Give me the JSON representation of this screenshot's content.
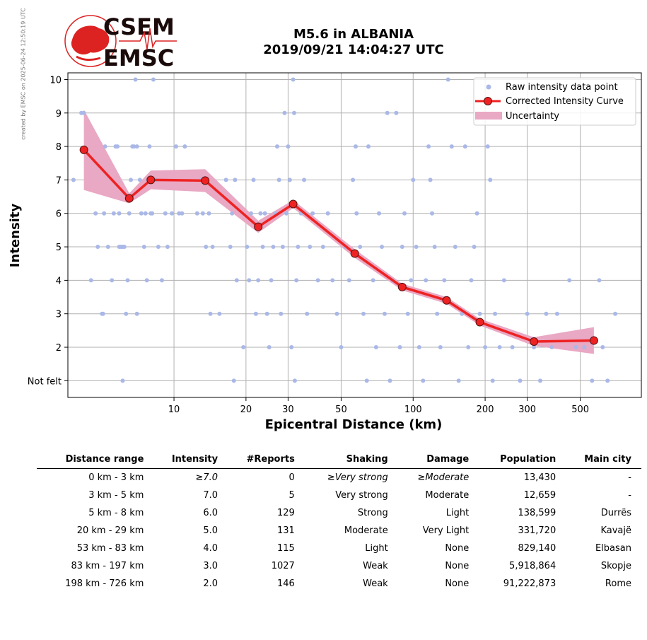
{
  "credit": "created by EMSC on 2025-06-24 12:50:19 UTC",
  "logo": {
    "line1": "CSEM",
    "line2": "EMSC"
  },
  "title": {
    "line1": "M5.6 in ALBANIA",
    "line2": "2019/09/21 14:04:27 UTC"
  },
  "colors": {
    "raw": "#aab8e8",
    "curve": "#ee2222",
    "uncertainty": "#e9a8c4",
    "logo_red": "#dd2222"
  },
  "chart_data": {
    "type": "scatter",
    "xlabel": "Epicentral Distance (km)",
    "ylabel": "Intensity",
    "xscale": "log",
    "xlim": [
      3.6,
      900
    ],
    "ylim": [
      0.5,
      10.2
    ],
    "xticks": [
      10,
      20,
      30,
      50,
      100,
      200,
      300,
      500
    ],
    "yticks": [
      1,
      2,
      3,
      4,
      5,
      6,
      7,
      8,
      9,
      10
    ],
    "ytick_labels": [
      "Not felt",
      "2",
      "3",
      "4",
      "5",
      "6",
      "7",
      "8",
      "9",
      "10"
    ],
    "grid": true,
    "legend": {
      "position": "top-right",
      "entries": [
        "Raw intensity data point",
        "Corrected Intensity Curve",
        "Uncertainty"
      ]
    },
    "corrected_curve": {
      "name": "Corrected Intensity Curve",
      "x": [
        4.2,
        6.5,
        8.0,
        13.5,
        22.5,
        31.5,
        57,
        90,
        138,
        190,
        320,
        570
      ],
      "y": [
        7.9,
        6.45,
        7.0,
        6.98,
        5.6,
        6.28,
        4.8,
        3.8,
        3.4,
        2.75,
        2.17,
        2.2
      ]
    },
    "uncertainty": {
      "name": "Uncertainty",
      "x": [
        4.2,
        6.5,
        8.0,
        13.5,
        22.5,
        31.5,
        57,
        90,
        138,
        190,
        320,
        570
      ],
      "upper": [
        9.1,
        6.6,
        7.28,
        7.32,
        5.78,
        6.4,
        4.93,
        3.9,
        3.5,
        2.85,
        2.3,
        2.6
      ],
      "lower": [
        6.7,
        6.3,
        6.72,
        6.64,
        5.42,
        6.16,
        4.67,
        3.7,
        3.3,
        2.65,
        2.04,
        1.8
      ]
    },
    "raw_points": [
      [
        3.8,
        7
      ],
      [
        4.1,
        9
      ],
      [
        4.2,
        9
      ],
      [
        4.5,
        4
      ],
      [
        4.7,
        6
      ],
      [
        4.8,
        5
      ],
      [
        5.0,
        3
      ],
      [
        5.05,
        3
      ],
      [
        5.1,
        6
      ],
      [
        5.15,
        8
      ],
      [
        5.3,
        5
      ],
      [
        5.5,
        4
      ],
      [
        5.6,
        6
      ],
      [
        5.7,
        8
      ],
      [
        5.8,
        8
      ],
      [
        5.9,
        6
      ],
      [
        5.9,
        5
      ],
      [
        6.0,
        5
      ],
      [
        6.1,
        5
      ],
      [
        6.2,
        5
      ],
      [
        6.3,
        3
      ],
      [
        6.1,
        1
      ],
      [
        6.4,
        4
      ],
      [
        6.5,
        6
      ],
      [
        6.6,
        7
      ],
      [
        6.7,
        8
      ],
      [
        6.8,
        8
      ],
      [
        6.9,
        10
      ],
      [
        7.0,
        8
      ],
      [
        7.0,
        3
      ],
      [
        7.2,
        7
      ],
      [
        7.3,
        6
      ],
      [
        7.5,
        5
      ],
      [
        7.6,
        6
      ],
      [
        7.7,
        4
      ],
      [
        7.8,
        7
      ],
      [
        7.9,
        8
      ],
      [
        8.0,
        6
      ],
      [
        8.1,
        6
      ],
      [
        8.2,
        10
      ],
      [
        8.4,
        7
      ],
      [
        8.6,
        5
      ],
      [
        8.9,
        4
      ],
      [
        9.2,
        6
      ],
      [
        9.4,
        5
      ],
      [
        9.8,
        6
      ],
      [
        10.2,
        8
      ],
      [
        10.5,
        6
      ],
      [
        10.8,
        6
      ],
      [
        11.1,
        8
      ],
      [
        12.5,
        6
      ],
      [
        13.0,
        7
      ],
      [
        13.2,
        6
      ],
      [
        13.6,
        5
      ],
      [
        14.0,
        6
      ],
      [
        14.2,
        3
      ],
      [
        14.5,
        5
      ],
      [
        15.5,
        3
      ],
      [
        16.5,
        7
      ],
      [
        17.2,
        5
      ],
      [
        17.5,
        6
      ],
      [
        17.8,
        1
      ],
      [
        18.0,
        7
      ],
      [
        18.3,
        4
      ],
      [
        19.5,
        2
      ],
      [
        20.2,
        5
      ],
      [
        20.6,
        4
      ],
      [
        21.0,
        6
      ],
      [
        21.5,
        7
      ],
      [
        22.0,
        3
      ],
      [
        22.5,
        4
      ],
      [
        23.0,
        6
      ],
      [
        23.5,
        5
      ],
      [
        24.0,
        6
      ],
      [
        24.5,
        3
      ],
      [
        25.0,
        2
      ],
      [
        25.5,
        4
      ],
      [
        26.0,
        5
      ],
      [
        26.5,
        6
      ],
      [
        27.0,
        8
      ],
      [
        27.5,
        7
      ],
      [
        28.0,
        3
      ],
      [
        28.5,
        5
      ],
      [
        29.0,
        9
      ],
      [
        29.5,
        6
      ],
      [
        30.0,
        8
      ],
      [
        30.5,
        7
      ],
      [
        31.0,
        2
      ],
      [
        31.5,
        10
      ],
      [
        31.8,
        9
      ],
      [
        32.0,
        1
      ],
      [
        32.5,
        4
      ],
      [
        33.0,
        5
      ],
      [
        34.0,
        6
      ],
      [
        35.0,
        7
      ],
      [
        36.0,
        3
      ],
      [
        37.0,
        5
      ],
      [
        38.0,
        6
      ],
      [
        40.0,
        4
      ],
      [
        42.0,
        5
      ],
      [
        44.0,
        6
      ],
      [
        46.0,
        4
      ],
      [
        48.0,
        3
      ],
      [
        50.0,
        2
      ],
      [
        52.0,
        5
      ],
      [
        54.0,
        4
      ],
      [
        56.0,
        7
      ],
      [
        57.5,
        8
      ],
      [
        58.0,
        6
      ],
      [
        60.0,
        5
      ],
      [
        62.0,
        3
      ],
      [
        64.0,
        1
      ],
      [
        65.0,
        8
      ],
      [
        68.0,
        4
      ],
      [
        70.0,
        2
      ],
      [
        72.0,
        6
      ],
      [
        74.0,
        5
      ],
      [
        76.0,
        3
      ],
      [
        78.0,
        9
      ],
      [
        80.0,
        1
      ],
      [
        82.0,
        4
      ],
      [
        85.0,
        9
      ],
      [
        88.0,
        2
      ],
      [
        90.0,
        5
      ],
      [
        92.0,
        6
      ],
      [
        95.0,
        3
      ],
      [
        98.0,
        4
      ],
      [
        100.0,
        7
      ],
      [
        103.0,
        5
      ],
      [
        106.0,
        2
      ],
      [
        110.0,
        1
      ],
      [
        113.0,
        4
      ],
      [
        116.0,
        8
      ],
      [
        118.0,
        7
      ],
      [
        120.0,
        6
      ],
      [
        123.0,
        5
      ],
      [
        126.0,
        3
      ],
      [
        130.0,
        2
      ],
      [
        135.0,
        4
      ],
      [
        140.0,
        10
      ],
      [
        145.0,
        8
      ],
      [
        150.0,
        5
      ],
      [
        155.0,
        1
      ],
      [
        160.0,
        3
      ],
      [
        165.0,
        8
      ],
      [
        170.0,
        2
      ],
      [
        175.0,
        4
      ],
      [
        180.0,
        5
      ],
      [
        185.0,
        6
      ],
      [
        190.0,
        3
      ],
      [
        200.0,
        2
      ],
      [
        205.0,
        8
      ],
      [
        210.0,
        7
      ],
      [
        215.0,
        1
      ],
      [
        220.0,
        3
      ],
      [
        230.0,
        2
      ],
      [
        240.0,
        4
      ],
      [
        260.0,
        2
      ],
      [
        280.0,
        1
      ],
      [
        300.0,
        3
      ],
      [
        320.0,
        2
      ],
      [
        340.0,
        1
      ],
      [
        360.0,
        3
      ],
      [
        380.0,
        2
      ],
      [
        400.0,
        3
      ],
      [
        450.0,
        4
      ],
      [
        480.0,
        2
      ],
      [
        520.0,
        2
      ],
      [
        560.0,
        1
      ],
      [
        600.0,
        4
      ],
      [
        620.0,
        2
      ],
      [
        650.0,
        1
      ],
      [
        700.0,
        3
      ]
    ]
  },
  "table": {
    "headers": [
      "Distance range",
      "Intensity",
      "#Reports",
      "Shaking",
      "Damage",
      "Population",
      "Main city"
    ],
    "rows": [
      [
        "0 km -    3 km",
        "≥7.0",
        "0",
        "≥Very strong",
        "≥Moderate",
        "13,430",
        "-"
      ],
      [
        "3 km -    5 km",
        "7.0",
        "5",
        "Very strong",
        "Moderate",
        "12,659",
        "-"
      ],
      [
        "5 km -    8 km",
        "6.0",
        "129",
        "Strong",
        "Light",
        "138,599",
        "Durrës"
      ],
      [
        "20 km -   29 km",
        "5.0",
        "131",
        "Moderate",
        "Very Light",
        "331,720",
        "Kavajë"
      ],
      [
        "53 km -   83 km",
        "4.0",
        "115",
        "Light",
        "None",
        "829,140",
        "Elbasan"
      ],
      [
        "83 km -  197 km",
        "3.0",
        "1027",
        "Weak",
        "None",
        "5,918,864",
        "Skopje"
      ],
      [
        "198 km -  726 km",
        "2.0",
        "146",
        "Weak",
        "None",
        "91,222,873",
        "Rome"
      ]
    ]
  }
}
